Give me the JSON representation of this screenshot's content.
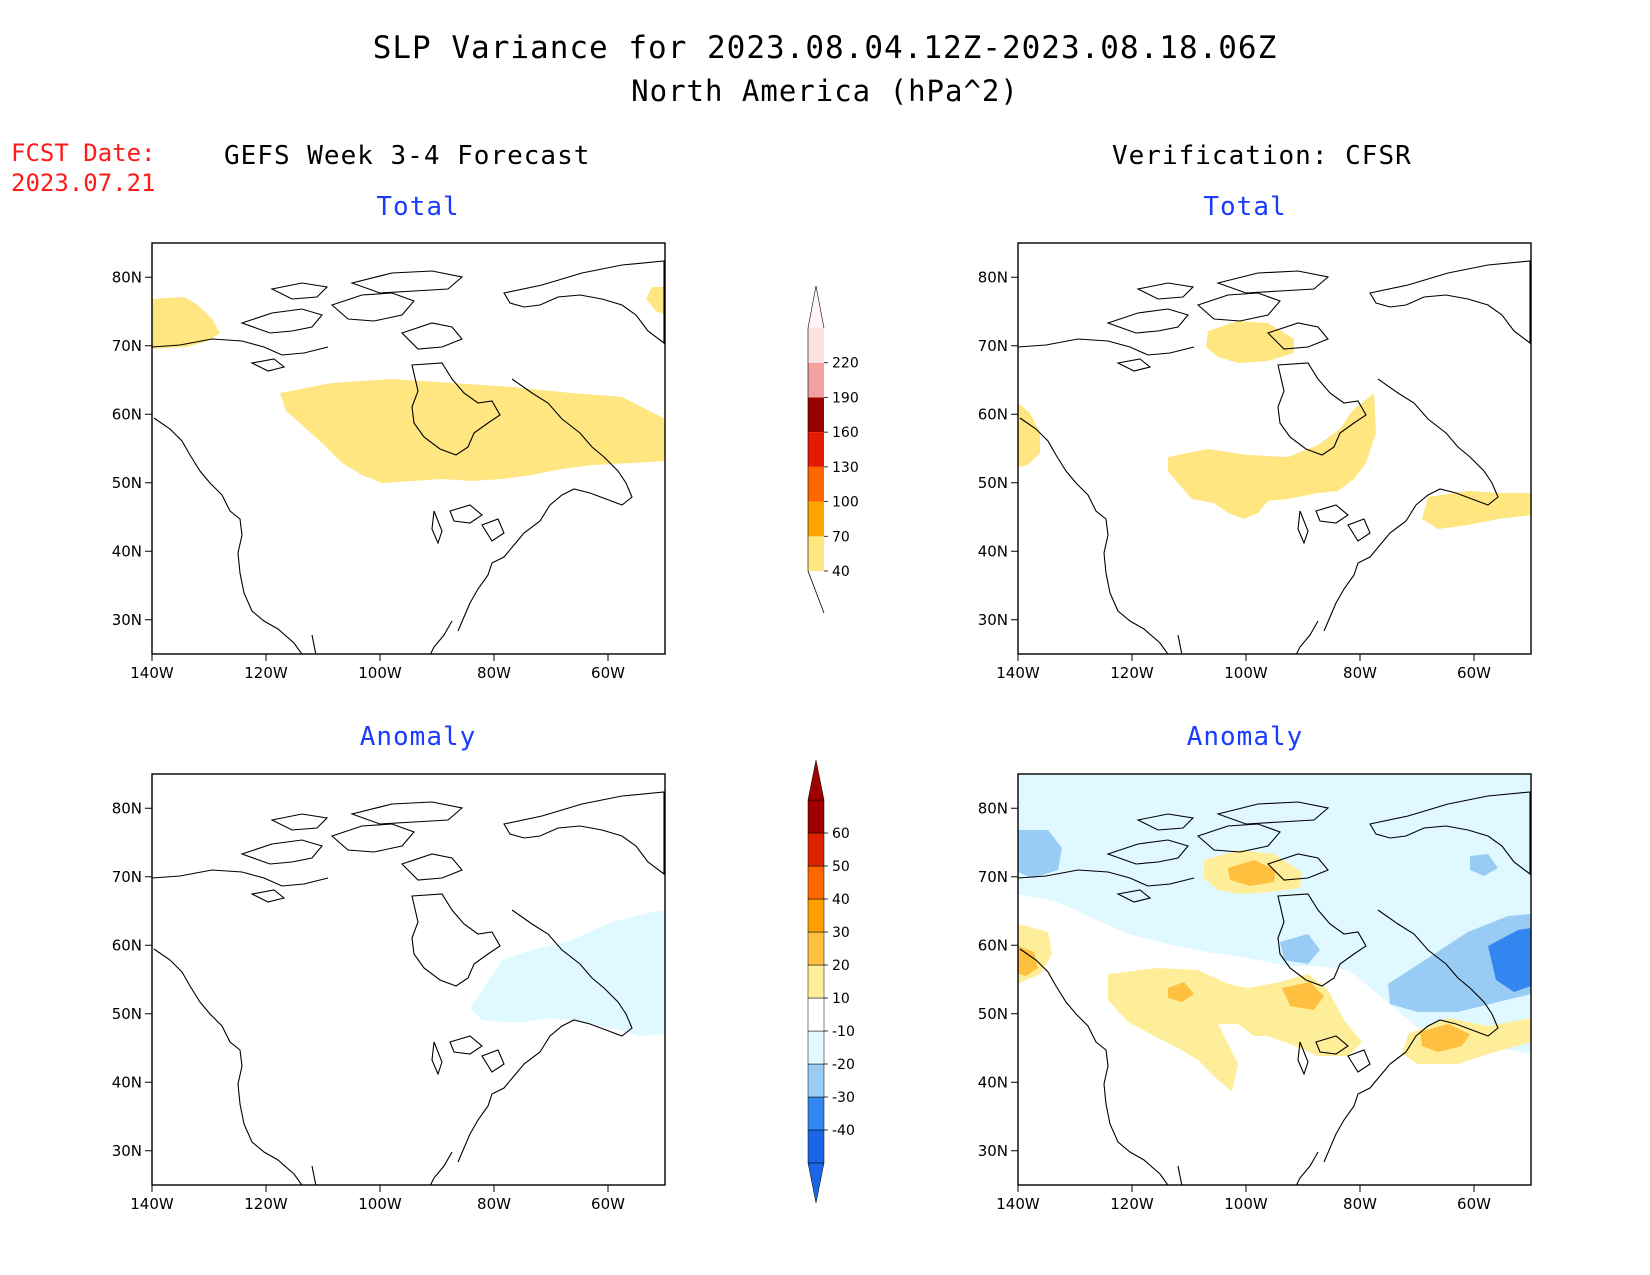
{
  "header": {
    "title": "SLP Variance for 2023.08.04.12Z-2023.08.18.06Z",
    "subtitle": "North America (hPa^2)",
    "fcst_label": "FCST Date:",
    "fcst_date": "2023.07.21",
    "left_column": "GEFS Week 3-4 Forecast",
    "right_column": "Verification: CFSR"
  },
  "panels": {
    "total_fcst": {
      "title": "Total"
    },
    "total_verif": {
      "title": "Total"
    },
    "anom_fcst": {
      "title": "Anomaly"
    },
    "anom_verif": {
      "title": "Anomaly"
    }
  },
  "axes": {
    "lat_ticks": [
      "80N",
      "70N",
      "60N",
      "50N",
      "40N",
      "30N"
    ],
    "lon_ticks": [
      "140W",
      "120W",
      "100W",
      "80W",
      "60W"
    ]
  },
  "colorbars": {
    "total": {
      "levels": [
        "40",
        "70",
        "100",
        "130",
        "160",
        "190",
        "220"
      ],
      "colors": [
        "#ffe680",
        "#ffa500",
        "#ff6600",
        "#e61a00",
        "#990000",
        "#f2a0a0",
        "#fde0e0"
      ]
    },
    "anomaly": {
      "levels": [
        "-40",
        "-30",
        "-20",
        "-10",
        "10",
        "20",
        "30",
        "40",
        "50",
        "60"
      ],
      "colors": [
        "#1a66e6",
        "#3385f0",
        "#99ccf5",
        "#e0f8ff",
        "#ffffff",
        "#ffee99",
        "#ffc040",
        "#ffa000",
        "#ff6600",
        "#dd2200",
        "#a00000"
      ]
    }
  },
  "chart_data": {
    "type": "heatmap",
    "lat_range": [
      25,
      85
    ],
    "lon_range": [
      -140,
      -50
    ],
    "variable": "SLP Variance (hPa^2)",
    "panels": [
      {
        "name": "GEFS Week 3-4 Forecast - Total",
        "max_level": "40-70"
      },
      {
        "name": "Verification: CFSR - Total",
        "max_level": "40-70"
      },
      {
        "name": "GEFS Week 3-4 Forecast - Anomaly",
        "min_level": "-20 to -10"
      },
      {
        "name": "Verification: CFSR - Anomaly",
        "min_level": "-40 to -30",
        "max_level": "30 to 40"
      }
    ]
  }
}
